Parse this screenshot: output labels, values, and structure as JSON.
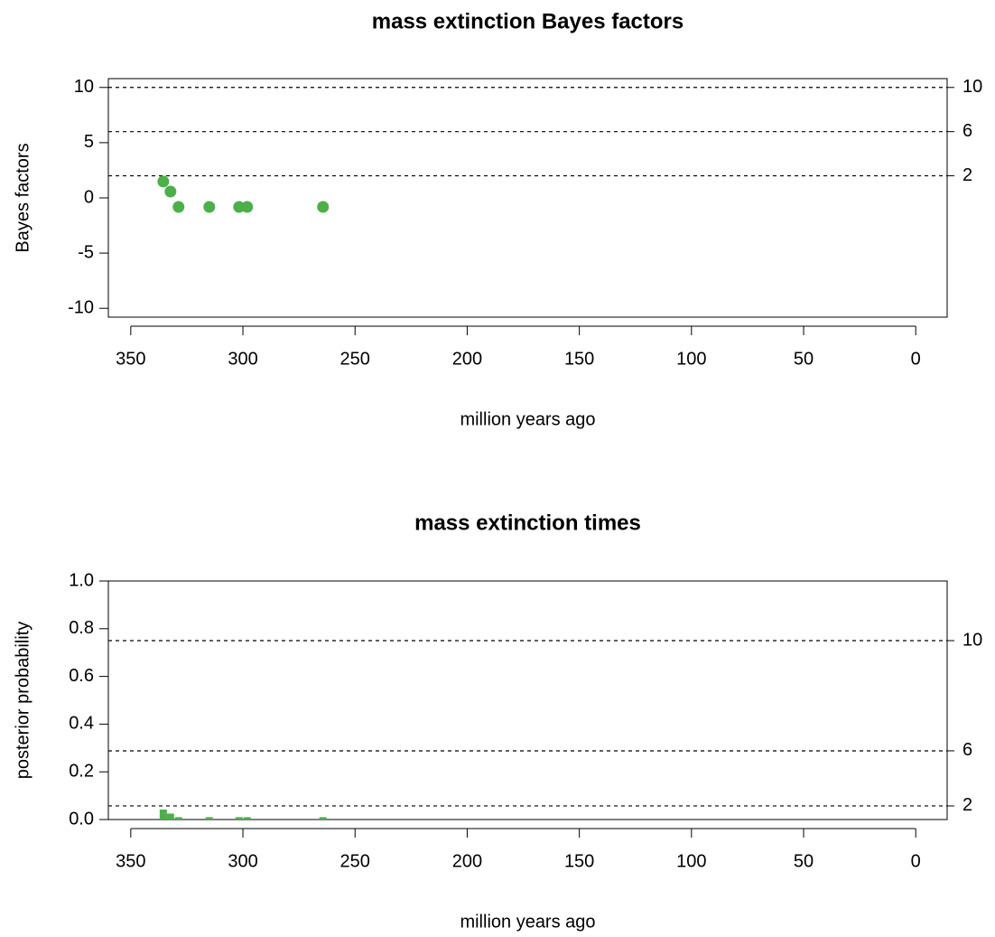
{
  "chart_data": [
    {
      "type": "scatter",
      "title": "mass extinction Bayes factors",
      "xlabel": "million years ago",
      "ylabel": "Bayes factors",
      "x": [
        335.5,
        332.3,
        328.7,
        315,
        301.7,
        298.1,
        264.3
      ],
      "values": [
        1.48,
        0.57,
        -0.82,
        -0.82,
        -0.82,
        -0.82,
        -0.82
      ],
      "color": "#4daf4a",
      "xlim": [
        360,
        -14
      ],
      "xticks": [
        350,
        300,
        250,
        200,
        150,
        100,
        50,
        0
      ],
      "ylim": [
        -10.8,
        10.8
      ],
      "yticks": [
        -10,
        -5,
        0,
        5,
        10
      ],
      "reference_lines": [
        2,
        6,
        10
      ]
    },
    {
      "type": "bar",
      "title": "mass extinction times",
      "xlabel": "million years ago",
      "ylabel": "posterior probability",
      "x": [
        335.5,
        332.3,
        328.7,
        315,
        301.7,
        298.1,
        264.3
      ],
      "values": [
        0.042,
        0.025,
        0.01,
        0.01,
        0.01,
        0.01,
        0.01
      ],
      "color": "#4daf4a",
      "xlim": [
        360,
        -14
      ],
      "xticks": [
        350,
        300,
        250,
        200,
        150,
        100,
        50,
        0
      ],
      "ylim": [
        0,
        1
      ],
      "yticks": [
        {
          "value": 0,
          "label": "0.0"
        },
        0.2,
        0.4,
        0.6,
        0.8,
        {
          "value": 1,
          "label": "1.0"
        }
      ],
      "reference_lines": [
        {
          "value": 0.057,
          "label": "2"
        },
        {
          "value": 0.288,
          "label": "6"
        },
        {
          "value": 0.75,
          "label": "10"
        }
      ]
    }
  ]
}
